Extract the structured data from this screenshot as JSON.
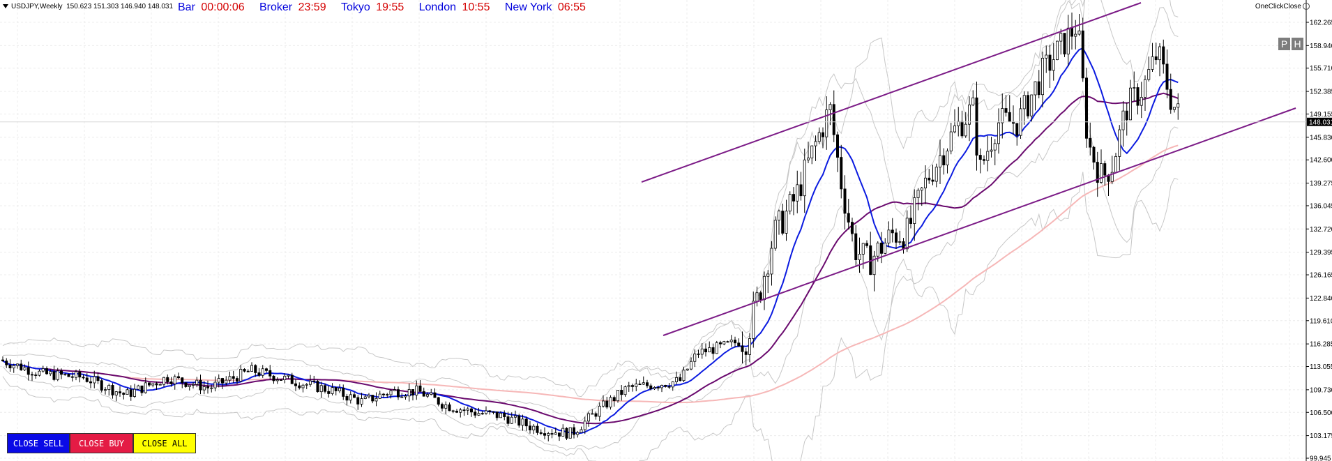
{
  "header": {
    "symbol": "USDJPY,Weekly",
    "ohlc": "150.623 151.303 146.940 148.031"
  },
  "sessions": [
    {
      "label": "Bar",
      "time": "00:00:06"
    },
    {
      "label": "Broker",
      "time": "23:59"
    },
    {
      "label": "Tokyo",
      "time": "19:55"
    },
    {
      "label": "London",
      "time": "10:55"
    },
    {
      "label": "New York",
      "time": "06:55"
    }
  ],
  "plugin_label": "OneClickClose",
  "ph_buttons": [
    "P",
    "H"
  ],
  "price_axis": {
    "ticks": [
      "162.265",
      "158.940",
      "155.710",
      "152.385",
      "149.155",
      "145.830",
      "142.600",
      "139.275",
      "136.045",
      "132.720",
      "129.395",
      "126.165",
      "122.840",
      "119.610",
      "116.285",
      "113.055",
      "109.730",
      "106.500",
      "103.175",
      "99.945"
    ],
    "current_price": "148.031",
    "min": 99.945,
    "max": 162.265
  },
  "buttons": {
    "close_sell": "CLOSE SELL",
    "close_buy": "CLOSE BUY",
    "close_all": "CLOSE ALL"
  },
  "colors": {
    "bar_label": "#d40000",
    "clock_value": "#d40000",
    "clock_label": "#0000dd",
    "fast_ma": "#0b1be0",
    "slow_ma": "#6a0a6e",
    "long_ma": "#f6b7b7",
    "channel": "#7c1c87",
    "envelope": "#c7c7c7",
    "current_price_bg": "#000000"
  }
}
